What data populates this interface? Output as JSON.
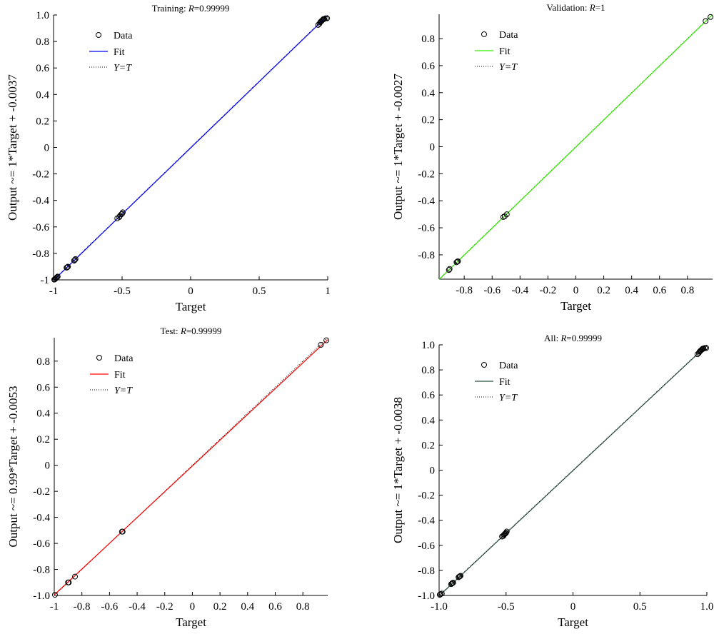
{
  "colors": {
    "fit_training": "#0000ff",
    "fit_validation": "#33ee00",
    "fit_test": "#ff0000",
    "fit_all": "#2f4f3f",
    "data_marker": "#000000",
    "ideal_line": "#000000"
  },
  "chart_data": [
    {
      "type": "scatter",
      "title": "Training: R=0.99999",
      "title_prefix": "Training: ",
      "r_label": "R",
      "r_value": "=0.99999",
      "xlabel": "Target",
      "ylabel": "Output ~= 1*Target + -0.0037",
      "xlim": [
        -1,
        1
      ],
      "ylim": [
        -1,
        1
      ],
      "xticks": [
        -1,
        -0.5,
        0,
        0.5,
        1
      ],
      "xtick_labels": [
        "-1",
        "-0.5",
        "0",
        "0.5",
        "1"
      ],
      "yticks": [
        -1,
        -0.8,
        -0.6,
        -0.4,
        -0.2,
        0,
        0.2,
        0.4,
        0.6,
        0.8,
        1
      ],
      "ytick_labels": [
        "-1",
        "-0.8",
        "-0.6",
        "-0.4",
        "-0.2",
        "0",
        "0.2",
        "0.4",
        "0.6",
        "0.8",
        "1.0"
      ],
      "fit": {
        "slope": 1,
        "intercept": -0.0037,
        "color": "#0000ff"
      },
      "legend": {
        "data": "Data",
        "fit": "Fit",
        "ideal": "Y=T",
        "placement": "top-left"
      },
      "points": [
        [
          -0.995,
          -0.998
        ],
        [
          -0.99,
          -0.995
        ],
        [
          -0.985,
          -0.99
        ],
        [
          -0.98,
          -0.985
        ],
        [
          -0.975,
          -0.98
        ],
        [
          -0.97,
          -0.975
        ],
        [
          -0.905,
          -0.908
        ],
        [
          -0.9,
          -0.905
        ],
        [
          -0.895,
          -0.9
        ],
        [
          -0.85,
          -0.855
        ],
        [
          -0.845,
          -0.85
        ],
        [
          -0.84,
          -0.843
        ],
        [
          -0.535,
          -0.535
        ],
        [
          -0.52,
          -0.525
        ],
        [
          -0.515,
          -0.515
        ],
        [
          -0.505,
          -0.505
        ],
        [
          -0.5,
          -0.5
        ],
        [
          -0.495,
          -0.49
        ],
        [
          0.93,
          0.925
        ],
        [
          0.94,
          0.935
        ],
        [
          0.945,
          0.945
        ],
        [
          0.95,
          0.95
        ],
        [
          0.955,
          0.955
        ],
        [
          0.96,
          0.96
        ],
        [
          0.965,
          0.965
        ],
        [
          0.97,
          0.97
        ],
        [
          0.975,
          0.97
        ],
        [
          0.985,
          0.975
        ],
        [
          0.995,
          0.975
        ]
      ]
    },
    {
      "type": "scatter",
      "title": "Validation: R=1",
      "title_prefix": "Validation: ",
      "r_label": "R",
      "r_value": "=1",
      "xlabel": "Target",
      "ylabel": "Output ~= 1*Target + -0.0027",
      "xlim": [
        -0.98,
        0.98
      ],
      "ylim": [
        -0.98,
        0.98
      ],
      "xticks": [
        -0.8,
        -0.6,
        -0.4,
        -0.2,
        0,
        0.2,
        0.4,
        0.6,
        0.8
      ],
      "xtick_labels": [
        "-0.8",
        "-0.6",
        "-0.4",
        "-0.2",
        "0",
        "0.2",
        "0.4",
        "0.6",
        "0.8"
      ],
      "yticks": [
        -0.8,
        -0.6,
        -0.4,
        -0.2,
        0,
        0.2,
        0.4,
        0.6,
        0.8
      ],
      "ytick_labels": [
        "-0.8",
        "-0.6",
        "-0.4",
        "-0.2",
        "0",
        "0.2",
        "0.4",
        "0.6",
        "0.8"
      ],
      "fit": {
        "slope": 1,
        "intercept": -0.0027,
        "color": "#33ee00"
      },
      "legend": {
        "data": "Data",
        "fit": "Fit",
        "ideal": "Y=T",
        "placement": "top-left"
      },
      "points": [
        [
          -0.91,
          -0.912
        ],
        [
          -0.905,
          -0.905
        ],
        [
          -0.855,
          -0.855
        ],
        [
          -0.85,
          -0.85
        ],
        [
          -0.845,
          -0.848
        ],
        [
          -0.52,
          -0.52
        ],
        [
          -0.51,
          -0.515
        ],
        [
          -0.495,
          -0.5
        ],
        [
          0.93,
          0.93
        ],
        [
          0.965,
          0.96
        ]
      ]
    },
    {
      "type": "scatter",
      "title": "Test: R=0.99999",
      "title_prefix": "Test: ",
      "r_label": "R",
      "r_value": "=0.99999",
      "xlabel": "Target",
      "ylabel": "Output ~= 0.99*Target + -0.0053",
      "xlim": [
        -1,
        0.98
      ],
      "ylim": [
        -1,
        0.98
      ],
      "xticks": [
        -1,
        -0.8,
        -0.6,
        -0.4,
        -0.2,
        0,
        0.2,
        0.4,
        0.6,
        0.8
      ],
      "xtick_labels": [
        "-1",
        "-0.8",
        "-0.6",
        "-0.4",
        "-0.2",
        "0",
        "0.2",
        "0.4",
        "0.6",
        "0.8"
      ],
      "yticks": [
        -1,
        -0.8,
        -0.6,
        -0.4,
        -0.2,
        0,
        0.2,
        0.4,
        0.6,
        0.8
      ],
      "ytick_labels": [
        "-1.0",
        "-0.8",
        "-0.6",
        "-0.4",
        "-0.2",
        "0",
        "0.2",
        "0.4",
        "0.6",
        "0.8"
      ],
      "fit": {
        "slope": 0.99,
        "intercept": -0.0053,
        "color": "#ff0000"
      },
      "legend": {
        "data": "Data",
        "fit": "Fit",
        "ideal": "Y=T",
        "placement": "top-left"
      },
      "points": [
        [
          -0.995,
          -0.995
        ],
        [
          -0.9,
          -0.9
        ],
        [
          -0.895,
          -0.9
        ],
        [
          -0.85,
          -0.855
        ],
        [
          -0.51,
          -0.51
        ],
        [
          -0.505,
          -0.51
        ],
        [
          0.93,
          0.925
        ],
        [
          0.97,
          0.96
        ]
      ]
    },
    {
      "type": "scatter",
      "title": "All: R=0.99999",
      "title_prefix": "All: ",
      "r_label": "R",
      "r_value": "=0.99999",
      "xlabel": "Target",
      "ylabel": "Output ~= 1*Target + -0.0038",
      "xlim": [
        -1,
        1
      ],
      "ylim": [
        -1,
        1
      ],
      "xticks": [
        -1,
        -0.5,
        0,
        0.5,
        1
      ],
      "xtick_labels": [
        "-1.0",
        "-0.5",
        "0",
        "0.5",
        "1.0"
      ],
      "yticks": [
        -1,
        -0.8,
        -0.6,
        -0.4,
        -0.2,
        0,
        0.2,
        0.4,
        0.6,
        0.8,
        1
      ],
      "ytick_labels": [
        "-1.0",
        "-0.8",
        "-0.6",
        "-0.4",
        "-0.2",
        "0",
        "0.2",
        "0.4",
        "0.6",
        "0.8",
        "1.0"
      ],
      "fit": {
        "slope": 1,
        "intercept": -0.0038,
        "color": "#2f4f3f"
      },
      "legend": {
        "data": "Data",
        "fit": "Fit",
        "ideal": "Y=T",
        "placement": "top-left"
      },
      "points": [
        [
          -0.995,
          -0.995
        ],
        [
          -0.99,
          -0.99
        ],
        [
          -0.98,
          -0.985
        ],
        [
          -0.91,
          -0.91
        ],
        [
          -0.905,
          -0.905
        ],
        [
          -0.9,
          -0.9
        ],
        [
          -0.895,
          -0.898
        ],
        [
          -0.855,
          -0.855
        ],
        [
          -0.85,
          -0.85
        ],
        [
          -0.845,
          -0.848
        ],
        [
          -0.84,
          -0.843
        ],
        [
          -0.53,
          -0.53
        ],
        [
          -0.52,
          -0.525
        ],
        [
          -0.515,
          -0.515
        ],
        [
          -0.51,
          -0.51
        ],
        [
          -0.505,
          -0.505
        ],
        [
          -0.5,
          -0.5
        ],
        [
          -0.495,
          -0.49
        ],
        [
          0.93,
          0.925
        ],
        [
          0.94,
          0.935
        ],
        [
          0.945,
          0.945
        ],
        [
          0.95,
          0.95
        ],
        [
          0.955,
          0.955
        ],
        [
          0.96,
          0.96
        ],
        [
          0.965,
          0.965
        ],
        [
          0.97,
          0.97
        ],
        [
          0.975,
          0.97
        ],
        [
          0.985,
          0.975
        ],
        [
          0.995,
          0.975
        ]
      ]
    }
  ]
}
